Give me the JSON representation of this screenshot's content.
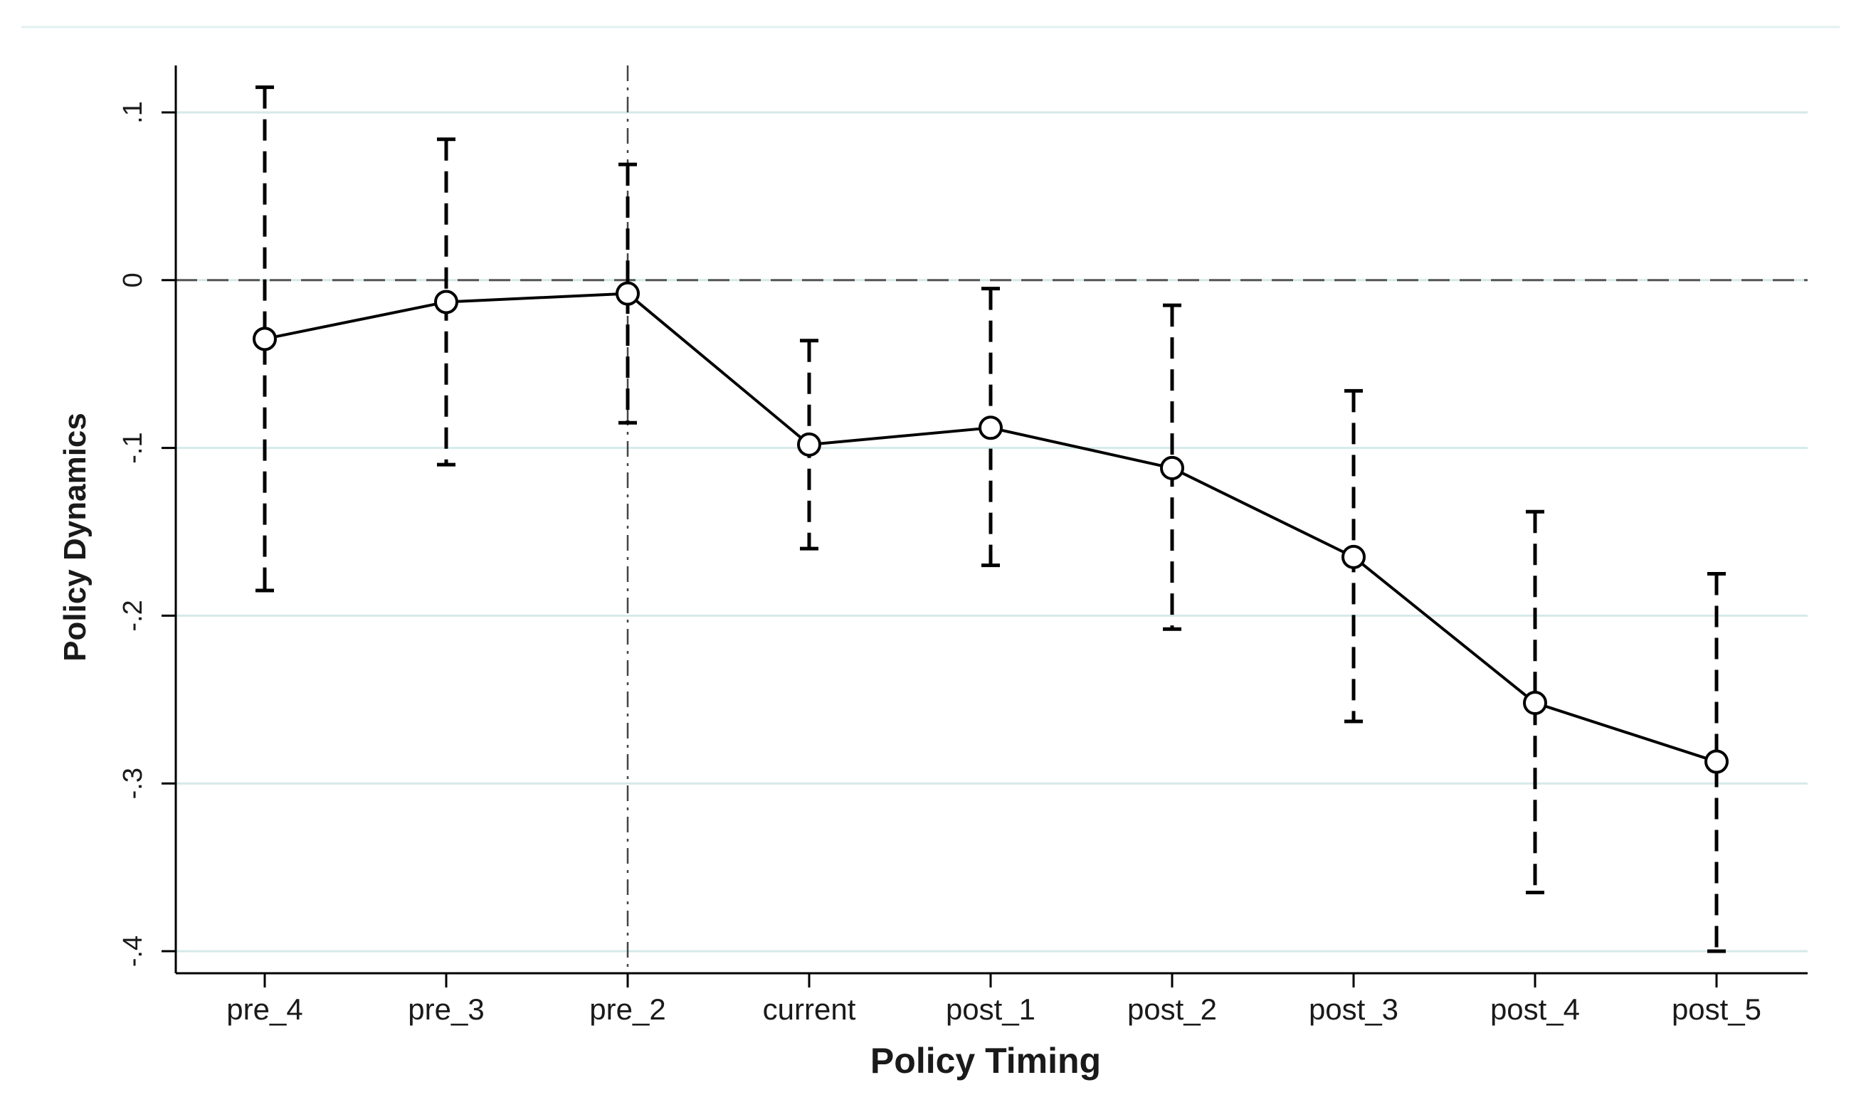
{
  "chart_data": {
    "type": "line",
    "title": "",
    "xlabel": "Policy Timing",
    "ylabel": "Policy Dynamics",
    "categories": [
      "pre_4",
      "pre_3",
      "pre_2",
      "current",
      "post_1",
      "post_2",
      "post_3",
      "post_4",
      "post_5"
    ],
    "series": [
      {
        "values": [
          -0.035,
          -0.013,
          -0.008,
          -0.098,
          -0.088,
          -0.112,
          -0.165,
          -0.252,
          -0.287
        ],
        "ci_lower": [
          -0.185,
          -0.11,
          -0.085,
          -0.16,
          -0.17,
          -0.208,
          -0.263,
          -0.365,
          -0.4
        ],
        "ci_upper": [
          0.115,
          0.084,
          0.069,
          -0.036,
          -0.005,
          -0.015,
          -0.066,
          -0.138,
          -0.175
        ]
      }
    ],
    "ylim": [
      -0.415,
      0.13
    ],
    "yticks": [
      0.1,
      0,
      -0.1,
      -0.2,
      -0.3,
      -0.4
    ],
    "ytick_labels": [
      ".1",
      "0",
      "-.1",
      "-.2",
      "-.3",
      "-.4"
    ],
    "reference_lines": {
      "horizontal_at_y": 0,
      "vertical_at_category": "pre_2"
    },
    "grid": "horizontal",
    "legend": "none",
    "colors": {
      "line": "#000000",
      "grid": "#d6e9e9",
      "axis": "#000000",
      "background": "#ffffff"
    }
  }
}
